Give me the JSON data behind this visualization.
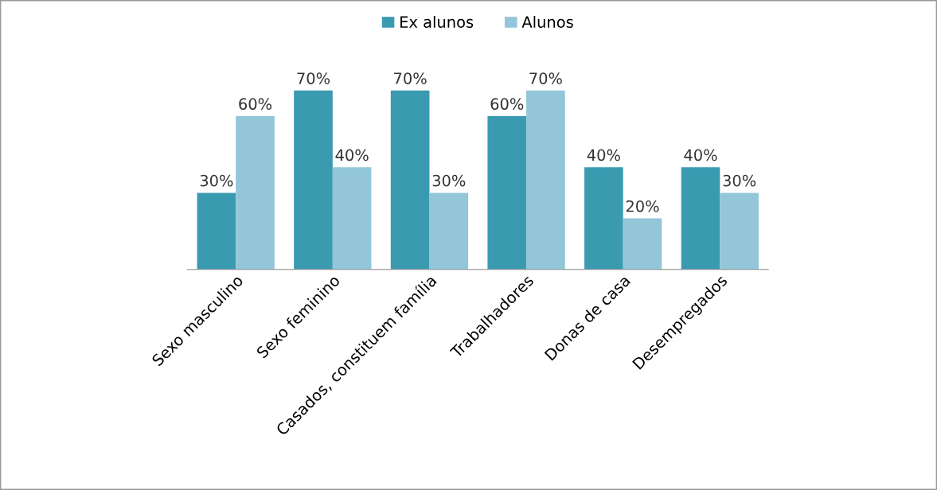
{
  "chart_data": {
    "type": "bar",
    "categories": [
      "Sexo masculino",
      "Sexo feminino",
      "Casados, constituem família",
      "Trabalhadores",
      "Donas de casa",
      "Desempregados"
    ],
    "series": [
      {
        "name": "Ex alunos",
        "color": "#3a9ab0",
        "values": [
          30,
          70,
          70,
          60,
          40,
          40
        ],
        "value_labels": [
          "30%",
          "70%",
          "70%",
          "60%",
          "40%",
          "40%"
        ]
      },
      {
        "name": "Alunos",
        "color": "#93c6d9",
        "values": [
          60,
          40,
          30,
          70,
          20,
          30
        ],
        "value_labels": [
          "60%",
          "40%",
          "30%",
          "70%",
          "20%",
          "30%"
        ]
      }
    ],
    "legend": "top",
    "grid": false,
    "tick_labels": "x"
  }
}
